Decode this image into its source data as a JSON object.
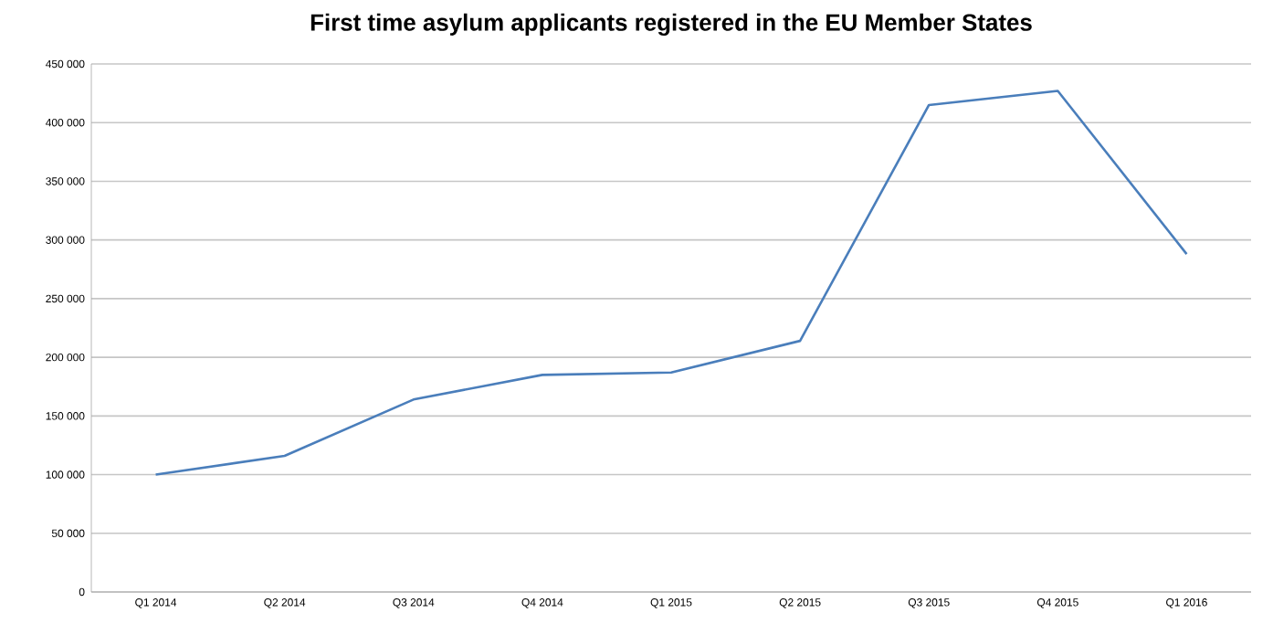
{
  "chart_data": {
    "type": "line",
    "title": "First time asylum applicants registered in the EU Member States",
    "categories": [
      "Q1 2014",
      "Q2 2014",
      "Q3 2014",
      "Q4 2014",
      "Q1 2015",
      "Q2 2015",
      "Q3 2015",
      "Q4 2015",
      "Q1 2016"
    ],
    "values": [
      100000,
      116000,
      164000,
      185000,
      187000,
      214000,
      415000,
      427000,
      288000
    ],
    "color": "#4a7ebb",
    "ylim": [
      0,
      450000
    ],
    "yticks": [
      0,
      {
        "value": 50000,
        "label": "50 000"
      },
      {
        "value": 100000,
        "label": "100 000"
      },
      {
        "value": 150000,
        "label": "150 000"
      },
      {
        "value": 200000,
        "label": "200 000"
      },
      {
        "value": 250000,
        "label": "250 000"
      },
      {
        "value": 300000,
        "label": "300 000"
      },
      {
        "value": 350000,
        "label": "350 000"
      },
      {
        "value": 400000,
        "label": "400 000"
      },
      {
        "value": 450000,
        "label": "450 000"
      }
    ],
    "grid": "y"
  }
}
